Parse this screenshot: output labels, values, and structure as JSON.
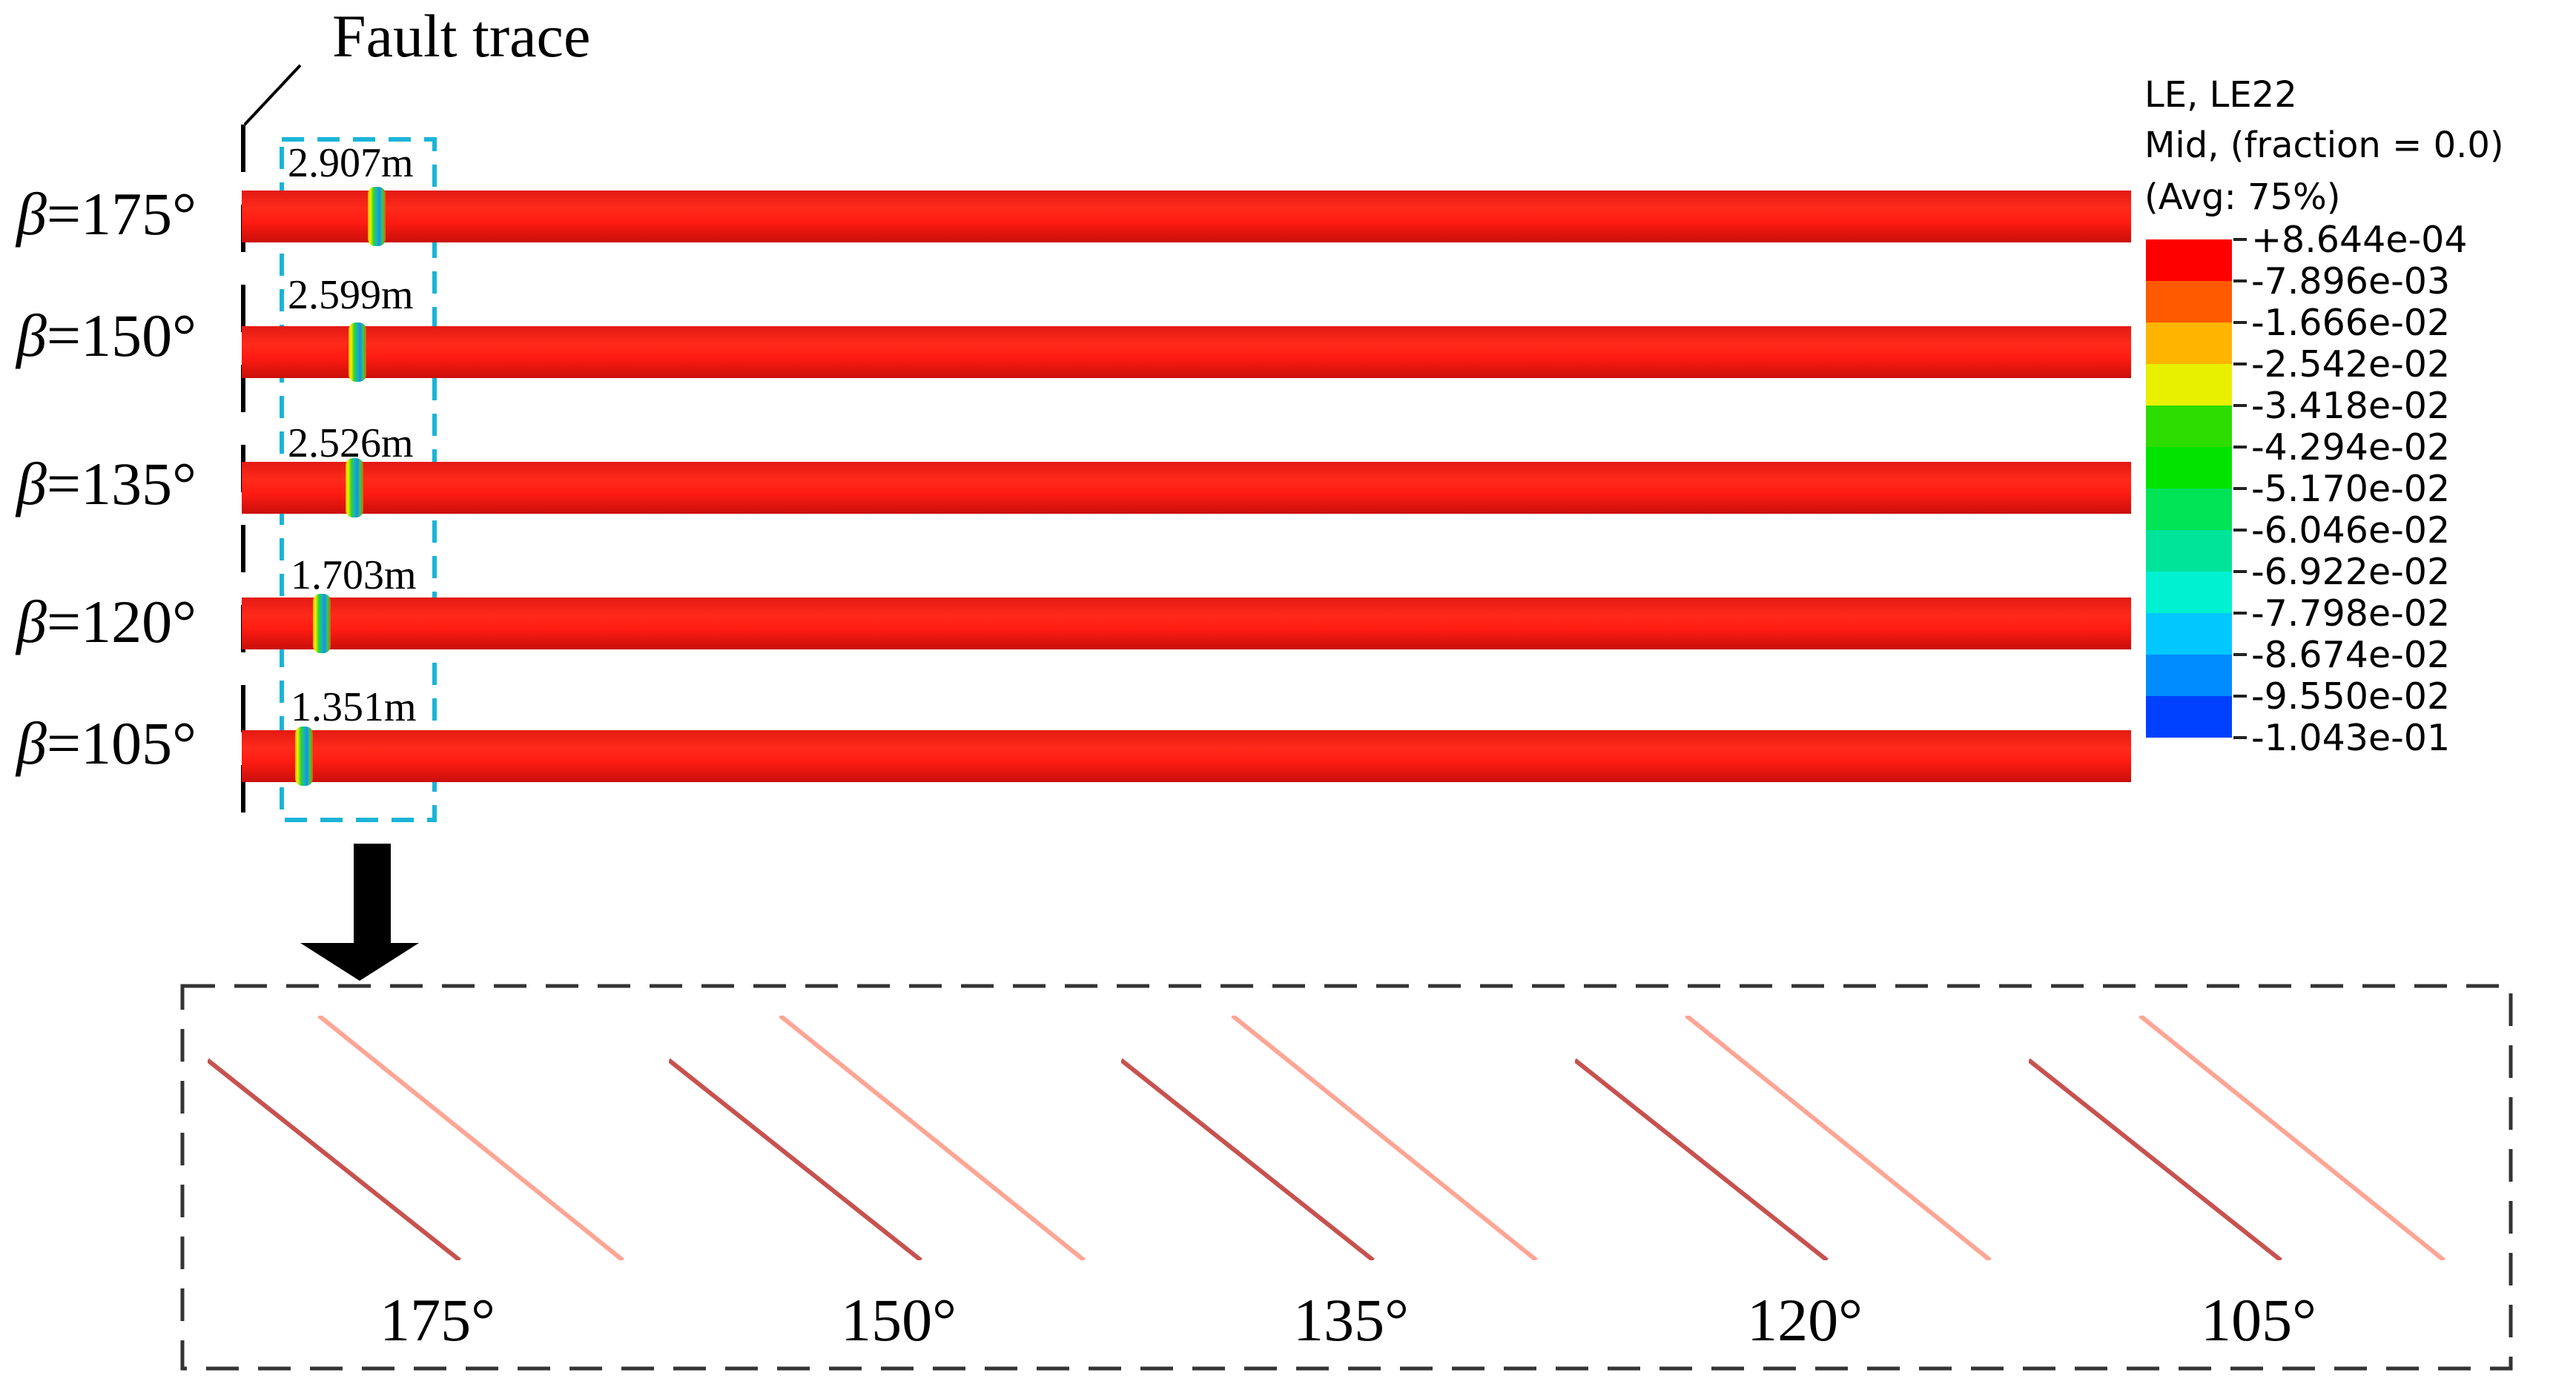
{
  "fault_trace_label": "Fault trace",
  "cases": [
    {
      "beta": "175°",
      "distance": "2.907m"
    },
    {
      "beta": "150°",
      "distance": "2.599m"
    },
    {
      "beta": "135°",
      "distance": "2.526m"
    },
    {
      "beta": "120°",
      "distance": "1.703m"
    },
    {
      "beta": "105°",
      "distance": "1.351m"
    }
  ],
  "beta_symbol": "β",
  "beta_equals": "=",
  "legend": {
    "line1": "LE, LE22",
    "line2": "Mid, (fraction = 0.0)",
    "line3": "(Avg: 75%)",
    "values": [
      "+8.644e-04",
      "-7.896e-03",
      "-1.666e-02",
      "-2.542e-02",
      "-3.418e-02",
      "-4.294e-02",
      "-5.170e-02",
      "-6.046e-02",
      "-6.922e-02",
      "-7.798e-02",
      "-8.674e-02",
      "-9.550e-02",
      "-1.043e-01"
    ],
    "colors": [
      "#ff0000",
      "#ff5a00",
      "#ffb400",
      "#e8f000",
      "#2ddc00",
      "#00e400",
      "#00e455",
      "#00e49a",
      "#00f0d2",
      "#00c8ff",
      "#008cff",
      "#0040ff",
      "#0000e0"
    ]
  },
  "zoom_panels": [
    "175°",
    "150°",
    "135°",
    "120°",
    "105°"
  ],
  "colors": {
    "pipe": "#ff1c12",
    "highlight_box": "#1ab4d8",
    "arrow": "#000000"
  }
}
